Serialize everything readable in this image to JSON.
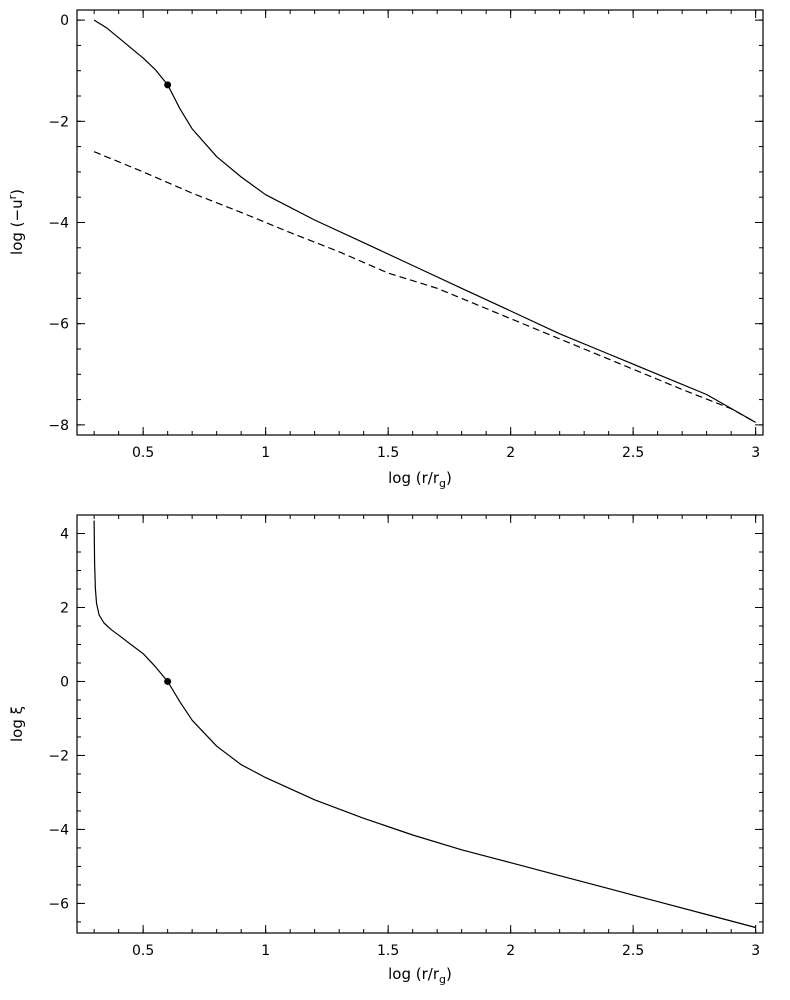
{
  "chart_data": [
    {
      "type": "line",
      "xlabel": "log (r/r",
      "xlabel_sub": "g",
      "xlabel_close": ")",
      "ylabel": "log (−u",
      "ylabel_sup": "r",
      "ylabel_close": ")",
      "xlim": [
        0.23,
        3.03
      ],
      "ylim": [
        -8.2,
        0.2
      ],
      "xticks": [
        0.5,
        1,
        1.5,
        2,
        2.5,
        3
      ],
      "xtick_labels": [
        "0.5",
        "1",
        "1.5",
        "2",
        "2.5",
        "3"
      ],
      "yticks": [
        0,
        -2,
        -4,
        -6,
        -8
      ],
      "ytick_labels": [
        "0",
        "−2",
        "−4",
        "−6",
        "−8"
      ],
      "series": [
        {
          "style": "solid",
          "x": [
            0.3,
            0.35,
            0.4,
            0.45,
            0.5,
            0.55,
            0.6,
            0.65,
            0.7,
            0.8,
            0.9,
            1.0,
            1.2,
            1.4,
            1.6,
            1.8,
            2.0,
            2.2,
            2.4,
            2.6,
            2.8,
            3.0
          ],
          "y": [
            0.0,
            -0.15,
            -0.35,
            -0.55,
            -0.75,
            -0.98,
            -1.28,
            -1.75,
            -2.15,
            -2.7,
            -3.1,
            -3.45,
            -3.95,
            -4.4,
            -4.85,
            -5.3,
            -5.75,
            -6.2,
            -6.6,
            -7.0,
            -7.4,
            -7.95
          ]
        },
        {
          "style": "dashed",
          "x": [
            0.3,
            0.5,
            0.7,
            0.9,
            1.1,
            1.3,
            1.5,
            1.7,
            1.9,
            2.1,
            2.3,
            2.5,
            2.7,
            2.9,
            3.0
          ],
          "y": [
            -2.6,
            -3.0,
            -3.42,
            -3.8,
            -4.2,
            -4.58,
            -5.0,
            -5.3,
            -5.7,
            -6.1,
            -6.5,
            -6.9,
            -7.3,
            -7.68,
            -7.95
          ]
        }
      ],
      "marker": {
        "x": 0.6,
        "y": -1.28
      }
    },
    {
      "type": "line",
      "xlabel": "log (r/r",
      "xlabel_sub": "g",
      "xlabel_close": ")",
      "ylabel": "log ξ",
      "xlim": [
        0.23,
        3.03
      ],
      "ylim": [
        -6.8,
        4.5
      ],
      "xticks": [
        0.5,
        1,
        1.5,
        2,
        2.5,
        3
      ],
      "xtick_labels": [
        "0.5",
        "1",
        "1.5",
        "2",
        "2.5",
        "3"
      ],
      "yticks": [
        4,
        2,
        0,
        -2,
        -4,
        -6
      ],
      "ytick_labels": [
        "4",
        "2",
        "0",
        "−2",
        "−4",
        "−6"
      ],
      "series": [
        {
          "style": "solid",
          "x": [
            0.3,
            0.302,
            0.305,
            0.31,
            0.32,
            0.34,
            0.37,
            0.4,
            0.45,
            0.5,
            0.55,
            0.6,
            0.65,
            0.7,
            0.8,
            0.9,
            1.0,
            1.2,
            1.4,
            1.6,
            1.8,
            2.0,
            2.2,
            2.4,
            2.6,
            2.8,
            3.0
          ],
          "y": [
            4.35,
            3.2,
            2.5,
            2.1,
            1.8,
            1.58,
            1.4,
            1.25,
            1.0,
            0.75,
            0.4,
            0.0,
            -0.55,
            -1.05,
            -1.75,
            -2.25,
            -2.6,
            -3.2,
            -3.7,
            -4.15,
            -4.55,
            -4.9,
            -5.25,
            -5.6,
            -5.95,
            -6.3,
            -6.65
          ]
        }
      ],
      "marker": {
        "x": 0.6,
        "y": 0.0
      }
    }
  ]
}
